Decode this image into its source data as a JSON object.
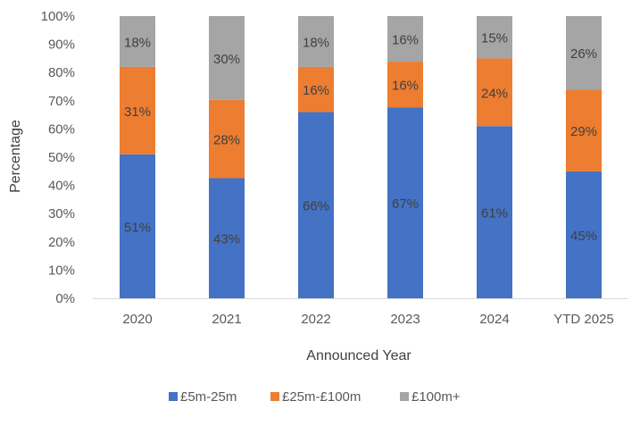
{
  "chart_data": {
    "type": "bar",
    "stacked": true,
    "title": "",
    "xlabel": "Announced Year",
    "ylabel": "Percentage",
    "ylim": [
      0,
      100
    ],
    "yticks": [
      "0%",
      "10%",
      "20%",
      "30%",
      "40%",
      "50%",
      "60%",
      "70%",
      "80%",
      "90%",
      "100%"
    ],
    "categories": [
      "2020",
      "2021",
      "2022",
      "2023",
      "2024",
      "YTD 2025"
    ],
    "series": [
      {
        "name": "£5m-25m",
        "color": "#4472C4",
        "values": [
          51,
          43,
          66,
          67,
          61,
          45
        ]
      },
      {
        "name": "£25m-£100m",
        "color": "#ED7D31",
        "values": [
          31,
          28,
          16,
          16,
          24,
          29
        ]
      },
      {
        "name": "£100m+",
        "color": "#A5A5A5",
        "values": [
          18,
          30,
          18,
          16,
          15,
          26
        ]
      }
    ],
    "grid": false,
    "legend": "bottom"
  }
}
